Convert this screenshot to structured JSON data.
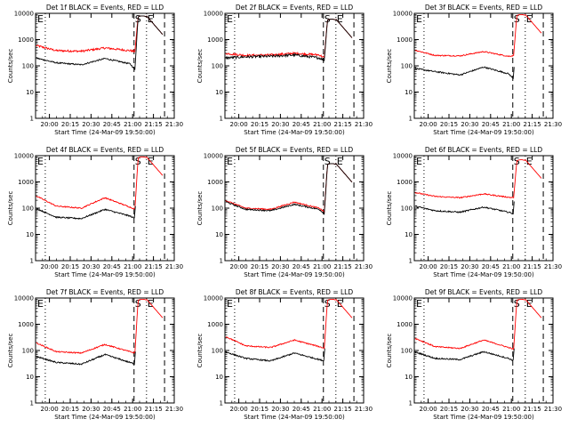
{
  "colors": {
    "events": "#000000",
    "lld": "#ff0000",
    "axis": "#000000",
    "background": "#ffffff"
  },
  "shared": {
    "ylabel": "Counts/sec",
    "xlabel": "Start Time (24-Mar-09 19:50:00)",
    "xticks": [
      "20:00",
      "20:15",
      "20:30",
      "20:45",
      "21:00",
      "21:15",
      "21:30"
    ],
    "yticks": [
      "1",
      "10",
      "100",
      "1000",
      "10000"
    ],
    "markers": {
      "E": "E",
      "S": "S"
    },
    "y_scale": "log",
    "ylim": [
      1,
      10000
    ],
    "xlim_minutes_after_start": [
      0,
      100
    ]
  },
  "chart_data": [
    {
      "type": "line",
      "title": "Det 1f BLACK = Events, RED = LLD",
      "series": [
        {
          "name": "Events",
          "shape": "smooth",
          "values": [
            [
              0,
              200
            ],
            [
              15,
              130
            ],
            [
              33,
              110
            ],
            [
              50,
              190
            ],
            [
              68,
              120
            ],
            [
              72,
              70
            ]
          ],
          "peak": 8000
        },
        {
          "name": "LLD",
          "shape": "flat",
          "values": [
            [
              0,
              600
            ],
            [
              15,
              380
            ],
            [
              33,
              360
            ],
            [
              50,
              480
            ],
            [
              68,
              380
            ],
            [
              72,
              350
            ]
          ],
          "peak": 8000
        }
      ]
    },
    {
      "type": "line",
      "title": "Det 2f BLACK = Events, RED = LLD",
      "series": [
        {
          "name": "Events",
          "shape": "flat",
          "values": [
            [
              0,
              200
            ],
            [
              15,
              220
            ],
            [
              33,
              230
            ],
            [
              50,
              260
            ],
            [
              68,
              200
            ],
            [
              72,
              160
            ]
          ],
          "peak": 6000
        },
        {
          "name": "LLD",
          "shape": "flat",
          "values": [
            [
              0,
              300
            ],
            [
              15,
              250
            ],
            [
              33,
              260
            ],
            [
              50,
              300
            ],
            [
              68,
              260
            ],
            [
              72,
              200
            ]
          ],
          "peak": 6000
        }
      ]
    },
    {
      "type": "line",
      "title": "Det 3f BLACK = Events, RED = LLD",
      "series": [
        {
          "name": "Events",
          "shape": "smooth",
          "values": [
            [
              0,
              80
            ],
            [
              15,
              60
            ],
            [
              33,
              45
            ],
            [
              50,
              90
            ],
            [
              68,
              50
            ],
            [
              72,
              30
            ]
          ],
          "peak": 0
        },
        {
          "name": "LLD",
          "shape": "smooth",
          "values": [
            [
              0,
              400
            ],
            [
              15,
              250
            ],
            [
              33,
              240
            ],
            [
              50,
              350
            ],
            [
              68,
              230
            ],
            [
              72,
              250
            ]
          ],
          "peak": 9000
        }
      ]
    },
    {
      "type": "line",
      "title": "Det 4f BLACK = Events, RED = LLD",
      "series": [
        {
          "name": "Events",
          "shape": "smooth",
          "values": [
            [
              0,
              100
            ],
            [
              15,
              45
            ],
            [
              33,
              40
            ],
            [
              50,
              90
            ],
            [
              68,
              50
            ],
            [
              72,
              40
            ]
          ],
          "peak": 0
        },
        {
          "name": "LLD",
          "shape": "smooth",
          "values": [
            [
              0,
              300
            ],
            [
              15,
              120
            ],
            [
              33,
              100
            ],
            [
              50,
              250
            ],
            [
              68,
              110
            ],
            [
              72,
              90
            ]
          ],
          "peak": 9000
        }
      ]
    },
    {
      "type": "line",
      "title": "Det 5f BLACK = Events, RED = LLD",
      "series": [
        {
          "name": "Events",
          "shape": "smooth",
          "values": [
            [
              0,
              180
            ],
            [
              15,
              90
            ],
            [
              33,
              80
            ],
            [
              50,
              140
            ],
            [
              68,
              90
            ],
            [
              72,
              60
            ]
          ],
          "peak": 5000
        },
        {
          "name": "LLD",
          "shape": "smooth",
          "values": [
            [
              0,
              200
            ],
            [
              15,
              100
            ],
            [
              33,
              90
            ],
            [
              50,
              170
            ],
            [
              68,
              100
            ],
            [
              72,
              70
            ]
          ],
          "peak": 5000
        }
      ]
    },
    {
      "type": "line",
      "title": "Det 6f BLACK = Events, RED = LLD",
      "series": [
        {
          "name": "Events",
          "shape": "smooth",
          "values": [
            [
              0,
              120
            ],
            [
              15,
              80
            ],
            [
              33,
              70
            ],
            [
              50,
              110
            ],
            [
              68,
              70
            ],
            [
              72,
              60
            ]
          ],
          "peak": 0
        },
        {
          "name": "LLD",
          "shape": "smooth",
          "values": [
            [
              0,
              400
            ],
            [
              15,
              280
            ],
            [
              33,
              250
            ],
            [
              50,
              350
            ],
            [
              68,
              260
            ],
            [
              72,
              250
            ]
          ],
          "peak": 7000
        }
      ]
    },
    {
      "type": "line",
      "title": "Det 7f BLACK = Events, RED = LLD",
      "series": [
        {
          "name": "Events",
          "shape": "smooth",
          "values": [
            [
              0,
              60
            ],
            [
              15,
              35
            ],
            [
              33,
              30
            ],
            [
              50,
              70
            ],
            [
              68,
              35
            ],
            [
              72,
              30
            ]
          ],
          "peak": 0
        },
        {
          "name": "LLD",
          "shape": "smooth",
          "values": [
            [
              0,
              200
            ],
            [
              15,
              90
            ],
            [
              33,
              80
            ],
            [
              50,
              170
            ],
            [
              68,
              90
            ],
            [
              72,
              80
            ]
          ],
          "peak": 9000
        }
      ]
    },
    {
      "type": "line",
      "title": "Det 8f BLACK = Events, RED = LLD",
      "series": [
        {
          "name": "Events",
          "shape": "smooth",
          "values": [
            [
              0,
              90
            ],
            [
              15,
              50
            ],
            [
              33,
              40
            ],
            [
              50,
              80
            ],
            [
              68,
              45
            ],
            [
              72,
              40
            ]
          ],
          "peak": 0
        },
        {
          "name": "LLD",
          "shape": "smooth",
          "values": [
            [
              0,
              350
            ],
            [
              15,
              150
            ],
            [
              33,
              130
            ],
            [
              50,
              250
            ],
            [
              68,
              140
            ],
            [
              72,
              120
            ]
          ],
          "peak": 9000
        }
      ]
    },
    {
      "type": "line",
      "title": "Det 9f BLACK = Events, RED = LLD",
      "series": [
        {
          "name": "Events",
          "shape": "smooth",
          "values": [
            [
              0,
              90
            ],
            [
              15,
              50
            ],
            [
              33,
              45
            ],
            [
              50,
              90
            ],
            [
              68,
              50
            ],
            [
              72,
              40
            ]
          ],
          "peak": 0
        },
        {
          "name": "LLD",
          "shape": "smooth",
          "values": [
            [
              0,
              300
            ],
            [
              15,
              140
            ],
            [
              33,
              120
            ],
            [
              50,
              250
            ],
            [
              68,
              130
            ],
            [
              72,
              110
            ]
          ],
          "peak": 9000
        }
      ]
    }
  ]
}
